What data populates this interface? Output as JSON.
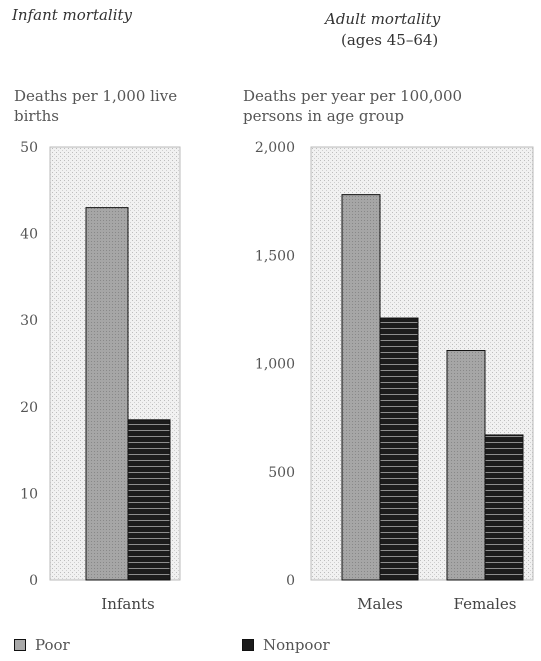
{
  "chart_data": [
    {
      "type": "bar",
      "title": "Infant mortality",
      "subtitle": "",
      "ylabel": "Deaths per 1,000 live births",
      "categories": [
        "Infants"
      ],
      "series": [
        {
          "name": "Poor",
          "values": [
            43
          ]
        },
        {
          "name": "Nonpoor",
          "values": [
            18.5
          ]
        }
      ],
      "ylim": [
        0,
        50
      ],
      "yticks": [
        0,
        10,
        20,
        30,
        40,
        50
      ],
      "ytick_labels": [
        "0",
        "10",
        "20",
        "30",
        "40",
        "50"
      ],
      "grid": false
    },
    {
      "type": "bar",
      "title": "Adult mortality",
      "subtitle": "(ages 45–64)",
      "ylabel": "Deaths per year per 100,000 persons in age group",
      "categories": [
        "Males",
        "Females"
      ],
      "series": [
        {
          "name": "Poor",
          "values": [
            1780,
            1060
          ]
        },
        {
          "name": "Nonpoor",
          "values": [
            1210,
            670
          ]
        }
      ],
      "ylim": [
        0,
        2000
      ],
      "yticks": [
        0,
        500,
        1000,
        1500,
        2000
      ],
      "ytick_labels": [
        "0",
        "500",
        "1,000",
        "1,500",
        "2,000"
      ],
      "grid": false
    }
  ],
  "legend": {
    "placement": "bottom",
    "items": [
      {
        "label": "Poor",
        "color": "#a9a9a9"
      },
      {
        "label": "Nonpoor",
        "color": "#1c1c1c"
      }
    ]
  },
  "colors": {
    "poor": "#a9a9a9",
    "nonpoor": "#1c1c1c",
    "panel": "#ededed"
  }
}
